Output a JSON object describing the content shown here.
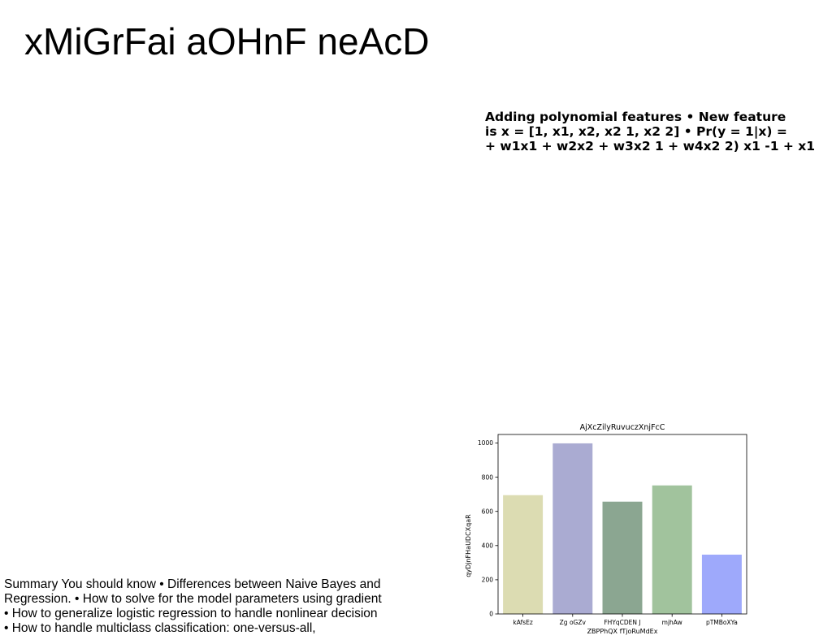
{
  "slide": {
    "title": "xMiGrFai aOHnF neAcD"
  },
  "polynomial_features": {
    "lines": [
      "Adding polynomial features • New feature",
      "is x = [1, x1, x2, x2 1, x2 2] • Pr(y = 1|x) =",
      "+ w1x1 + w2x2 + w3x2 1 + w4x2 2) x1 -1 + x1"
    ]
  },
  "summary": {
    "lines": [
      "Summary You should know • Differences between Naive Bayes and",
      "Regression. • How to solve for the model parameters using gradient",
      "• How to generalize logistic regression to handle nonlinear decision",
      "• How to handle multiclass classification: one-versus-all,"
    ]
  },
  "chart_data": {
    "type": "bar",
    "title": "AjXcZilyRuvuczXnjFcC",
    "xlabel": "ZBPPhQX fTjoRuMdEx",
    "ylabel": "qyDjnFHaUDCXqaR",
    "categories": [
      "kAfsEz",
      "Zg oGZv",
      "FHYqCDEN J",
      "mjhAw",
      "pTMBoXYa"
    ],
    "values": [
      695,
      998,
      657,
      752,
      347
    ],
    "colors": [
      "#dcdcb2",
      "#aaabd2",
      "#8ba691",
      "#a1c39d",
      "#9ea9fb"
    ],
    "ylim": [
      0,
      1050
    ],
    "yticks": [
      0,
      200,
      400,
      600,
      800,
      1000
    ],
    "grid": false,
    "legend": "none"
  }
}
